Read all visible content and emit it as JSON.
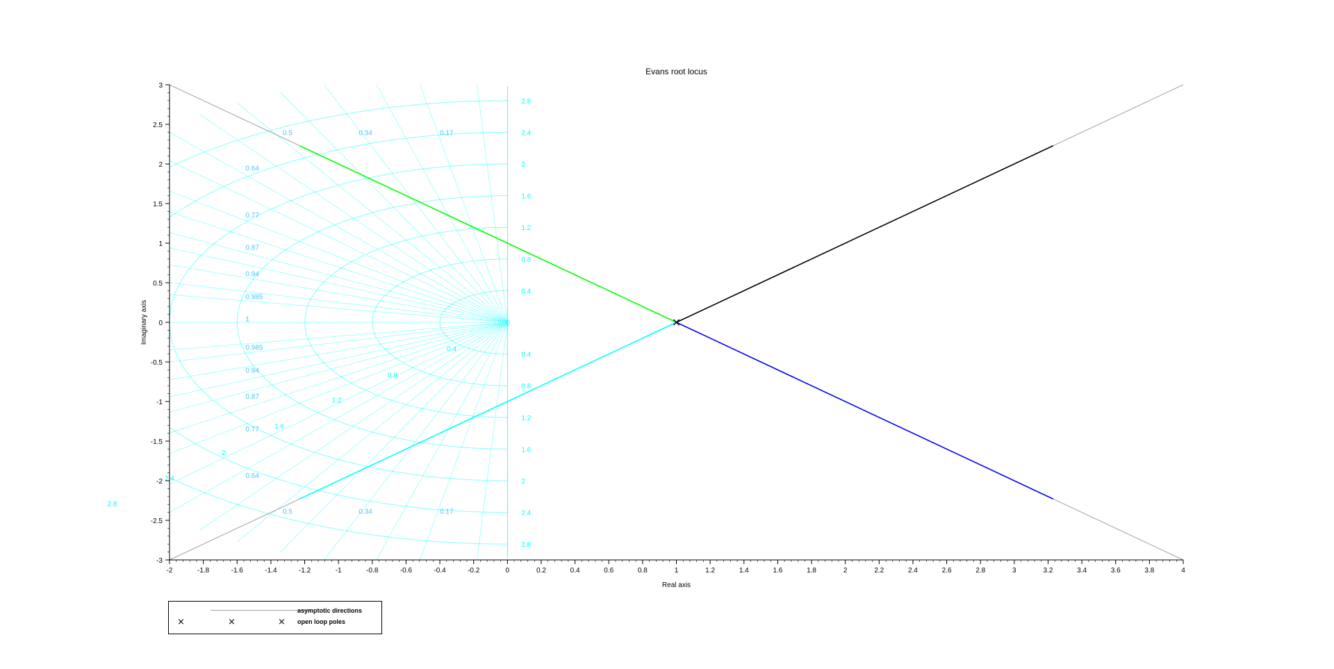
{
  "chart_data": {
    "type": "line",
    "title": "Evans root locus",
    "xlabel": "Real axis",
    "ylabel": "Imaginary axis",
    "xlim": [
      -2,
      4
    ],
    "ylim": [
      -3,
      3
    ],
    "x_ticks": [
      "-2",
      "-1.8",
      "-1.6",
      "-1.4",
      "-1.2",
      "-1",
      "-0.8",
      "-0.6",
      "-0.4",
      "-0.2",
      "0",
      "0.2",
      "0.4",
      "0.6",
      "0.8",
      "1",
      "1.2",
      "1.4",
      "1.6",
      "1.8",
      "2",
      "2.2",
      "2.4",
      "2.6",
      "2.8",
      "3",
      "3.2",
      "3.4",
      "3.6",
      "3.8",
      "4"
    ],
    "y_ticks": [
      "-3",
      "-2.5",
      "-2",
      "-1.5",
      "-1",
      "-0.5",
      "0",
      "0.5",
      "1",
      "1.5",
      "2",
      "2.5",
      "3"
    ],
    "series": [
      {
        "color": "#00ff00",
        "points": [
          [
            1,
            0
          ],
          [
            -1.23,
            2.23
          ]
        ]
      },
      {
        "color": "#00ffff",
        "points": [
          [
            1,
            0
          ],
          [
            -1.23,
            -2.23
          ]
        ]
      },
      {
        "color": "#000000",
        "points": [
          [
            1,
            0
          ],
          [
            3.23,
            2.23
          ]
        ]
      },
      {
        "color": "#0000ff",
        "points": [
          [
            1,
            0
          ],
          [
            3.23,
            -2.23
          ]
        ]
      }
    ],
    "asymptotes": {
      "color": "#a0a0a0",
      "points": [
        [
          [
            1,
            0
          ],
          [
            -2,
            3
          ]
        ],
        [
          [
            1,
            0
          ],
          [
            -2,
            -3
          ]
        ],
        [
          [
            1,
            0
          ],
          [
            4,
            3
          ]
        ],
        [
          [
            1,
            0
          ],
          [
            4,
            -3
          ]
        ]
      ]
    },
    "open_loop_poles": [
      [
        1,
        0
      ],
      [
        1,
        0
      ],
      [
        1,
        0
      ]
    ],
    "grid": {
      "color": "#00ffff",
      "label_color": "#4fc3f7",
      "frequencies": [
        0.4,
        0.8,
        1.2,
        1.6,
        2,
        2.4,
        2.8
      ],
      "freq_labels": [
        "0.4",
        "0.8",
        "1.2",
        "1.6",
        "2",
        "2.4",
        "2.8"
      ],
      "center_label": "0",
      "damping_rays": [
        {
          "label": "0.17",
          "zeta": 0.17
        },
        {
          "label": "0.34",
          "zeta": 0.34
        },
        {
          "label": "0.5",
          "zeta": 0.5
        },
        {
          "label": "0.64",
          "zeta": 0.64
        },
        {
          "label": "0.77",
          "zeta": 0.77
        },
        {
          "label": "0.87",
          "zeta": 0.87
        },
        {
          "label": "0.94",
          "zeta": 0.94
        },
        {
          "label": "0.985",
          "zeta": 0.985
        }
      ],
      "unity_label": "1",
      "extra_rays": [
        0.06,
        0.25,
        0.42,
        0.57,
        0.7,
        0.82,
        0.905,
        0.97
      ]
    },
    "legend": {
      "position": "bottom-left",
      "entries": [
        {
          "label": "asymptotic directions",
          "kind": "line",
          "color": "#a0a0a0"
        },
        {
          "label": "open loop poles",
          "kind": "marker",
          "marker": "×"
        }
      ]
    }
  }
}
